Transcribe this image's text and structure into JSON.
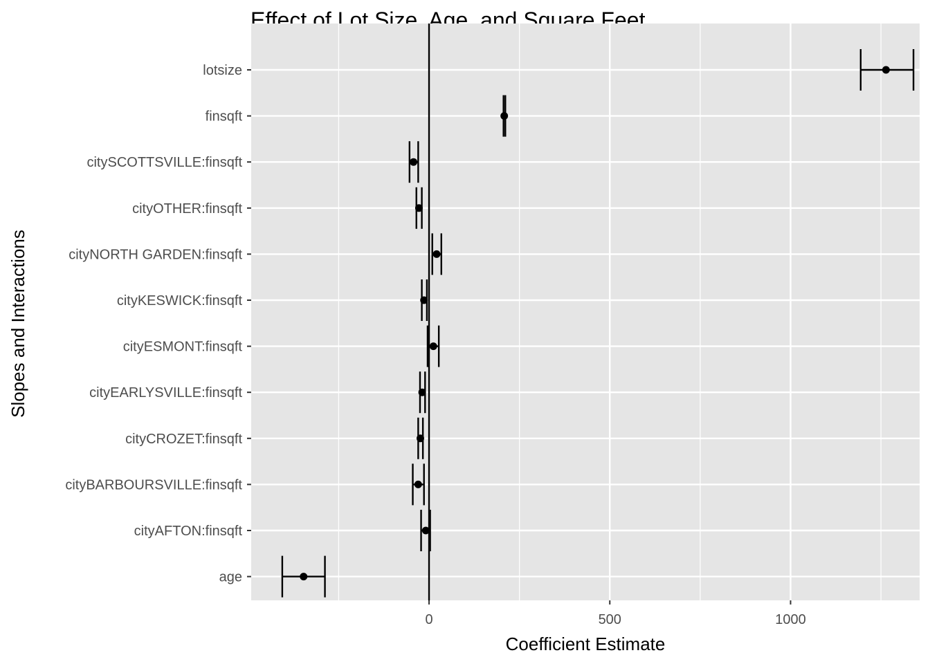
{
  "chart_data": {
    "type": "scatter",
    "subtype": "coefficient-plot-with-error-bars",
    "title": "Effect of Lot Size, Age, and Square Feet",
    "xlabel": "Coefficient Estimate",
    "ylabel": "Slopes and Interactions",
    "xlim": [
      -492,
      1357
    ],
    "x_ticks": [
      0,
      500,
      1000
    ],
    "x_tick_labels": [
      "0",
      "500",
      "1000"
    ],
    "reference_line_x": 0,
    "grid": true,
    "legend": "none",
    "colors": {
      "panel_background": "#e5e5e5",
      "grid": "#ffffff",
      "points": "#000000",
      "tick_text": "#4d4d4d"
    },
    "points": [
      {
        "term": "lotsize",
        "estimate": 1264,
        "low": 1194,
        "high": 1340
      },
      {
        "term": "finsqft",
        "estimate": 208,
        "low": 206,
        "high": 211
      },
      {
        "term": "citySCOTTSVILLE:finsqft",
        "estimate": -43,
        "low": -54,
        "high": -30
      },
      {
        "term": "cityOTHER:finsqft",
        "estimate": -28,
        "low": -35,
        "high": -20
      },
      {
        "term": "cityNORTH GARDEN:finsqft",
        "estimate": 21,
        "low": 9,
        "high": 34
      },
      {
        "term": "cityKESWICK:finsqft",
        "estimate": -14,
        "low": -20,
        "high": -6
      },
      {
        "term": "cityESMONT:finsqft",
        "estimate": 12,
        "low": -4,
        "high": 27
      },
      {
        "term": "cityEARLYSVILLE:finsqft",
        "estimate": -19,
        "low": -25,
        "high": -11
      },
      {
        "term": "cityCROZET:finsqft",
        "estimate": -24,
        "low": -30,
        "high": -17
      },
      {
        "term": "cityBARBOURSVILLE:finsqft",
        "estimate": -30,
        "low": -45,
        "high": -14
      },
      {
        "term": "cityAFTON:finsqft",
        "estimate": -9,
        "low": -22,
        "high": 3
      },
      {
        "term": "age",
        "estimate": -347,
        "low": -406,
        "high": -288
      }
    ]
  }
}
